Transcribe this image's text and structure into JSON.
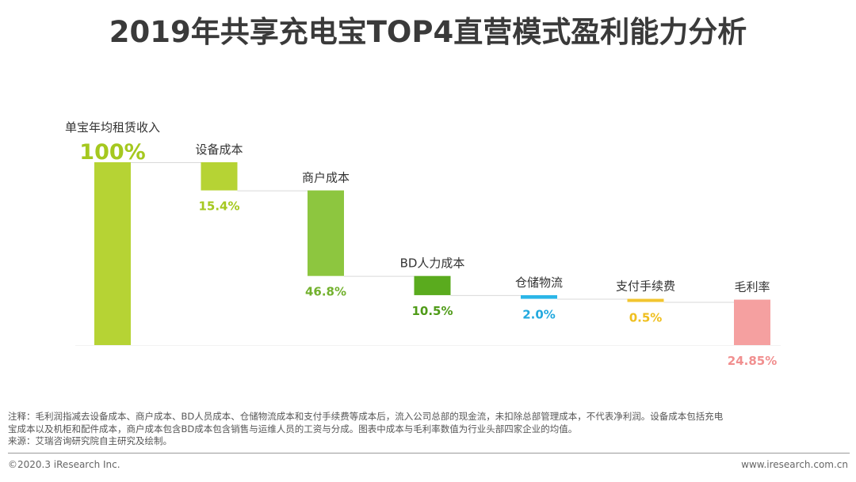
{
  "page": {
    "title": "2019年共享充电宝TOP4直营模式盈利能力分析",
    "note_line1": "注释：毛利润指减去设备成本、商户成本、BD人员成本、仓储物流成本和支付手续费等成本后，流入公司总部的现金流，未扣除总部管理成本，不代表净利润。设备成本包括充电",
    "note_line2": "宝成本以及机柜和配件成本，商户成本包含BD成本包含销售与运维人员的工资与分成。图表中成本与毛利率数值为行业头部四家企业的均值。",
    "source": "来源：艾瑞咨询研究院自主研究及绘制。",
    "copyright": "©2020.3 iResearch Inc.",
    "website": "www.iresearch.com.cn"
  },
  "chart_data": {
    "type": "bar",
    "subtype": "waterfall",
    "title": "2019年共享充电宝TOP4直营模式盈利能力分析",
    "unit": "%",
    "ylim": [
      0,
      100
    ],
    "grid": false,
    "categories": [
      "单宝年均租赁收入",
      "设备成本",
      "商户成本",
      "BD人力成本",
      "仓储物流",
      "支付手续费",
      "毛利率"
    ],
    "values": [
      100,
      15.4,
      46.8,
      10.5,
      2.0,
      0.5,
      24.85
    ],
    "value_labels": [
      "100%",
      "15.4%",
      "46.8%",
      "10.5%",
      "2.0%",
      "0.5%",
      "24.85%"
    ],
    "steps": [
      "total",
      "decrease",
      "decrease",
      "decrease",
      "decrease",
      "decrease",
      "total"
    ],
    "colors": [
      "#b6d334",
      "#b6d334",
      "#8dc63f",
      "#5aab1e",
      "#2bb6e8",
      "#f2c530",
      "#f5a0a0"
    ],
    "label_colors": [
      "#a5c81f",
      "#a5c81f",
      "#72b12d",
      "#4f9b18",
      "#22a9df",
      "#efbf1e",
      "#f18f8f"
    ]
  }
}
